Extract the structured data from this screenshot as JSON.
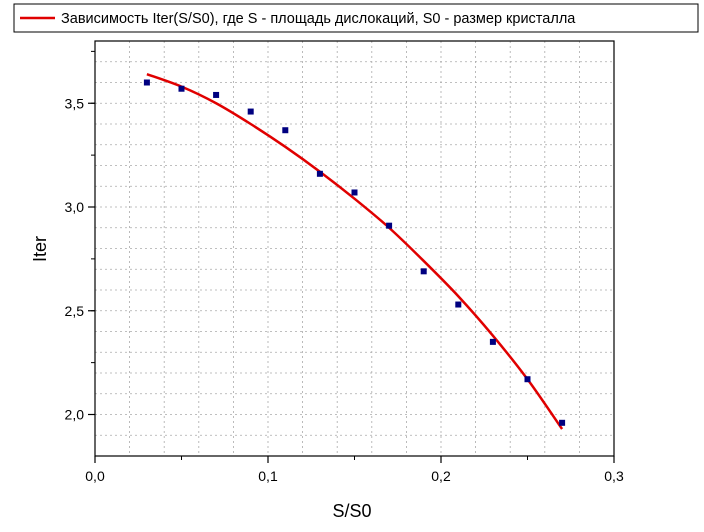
{
  "chart_data": {
    "type": "scatter",
    "legend": {
      "entries": [
        "Зависимость Iter(S/S0), где S - площадь дислокаций, S0 - размер кристалла"
      ],
      "placement": "top"
    },
    "xlabel": "S/S0",
    "ylabel": "Iter",
    "xlim": [
      0.0,
      0.3
    ],
    "ylim": [
      1.8,
      3.8
    ],
    "x_ticks": [
      "0,0",
      "0,1",
      "0,2",
      "0,3"
    ],
    "y_ticks": [
      "2,0",
      "2,5",
      "3,0",
      "3,5"
    ],
    "grid": true,
    "series": [
      {
        "kind": "points",
        "color": "#000080",
        "x": [
          0.03,
          0.05,
          0.07,
          0.09,
          0.11,
          0.13,
          0.15,
          0.17,
          0.19,
          0.21,
          0.23,
          0.25,
          0.27
        ],
        "y": [
          3.6,
          3.57,
          3.54,
          3.46,
          3.37,
          3.16,
          3.07,
          2.91,
          2.69,
          2.53,
          2.35,
          2.17,
          1.96
        ]
      },
      {
        "name": "Зависимость Iter(S/S0), где S - площадь дислокаций, S0 - размер кристалла",
        "kind": "fit-line",
        "color": "#e00000",
        "x": [
          0.03,
          0.05,
          0.07,
          0.09,
          0.11,
          0.13,
          0.15,
          0.17,
          0.19,
          0.21,
          0.23,
          0.25,
          0.27
        ],
        "y": [
          3.64,
          3.58,
          3.5,
          3.4,
          3.29,
          3.17,
          3.04,
          2.9,
          2.74,
          2.57,
          2.38,
          2.17,
          1.93
        ]
      }
    ]
  }
}
